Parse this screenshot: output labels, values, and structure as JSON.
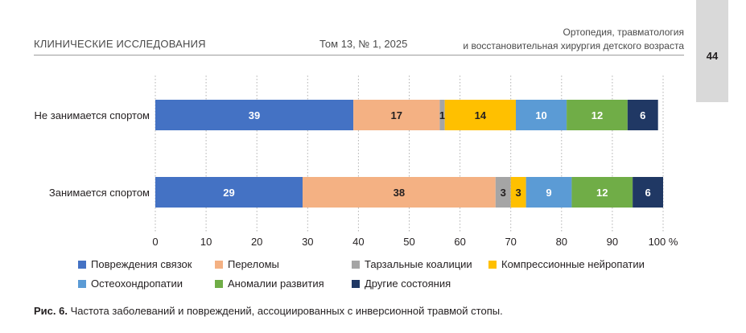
{
  "header": {
    "journal_section": "КЛИНИЧЕСКИЕ ИССЛЕДОВАНИЯ",
    "issue": "Том 13, № 1, 2025",
    "journal_title_line1": "Ортопедия, травматология",
    "journal_title_line2": "и восстановительная хирургия детского возраста",
    "page_number": "44"
  },
  "caption": {
    "label": "Рис. 6.",
    "text": " Частота заболеваний и повреждений, ассоциированных с инверсионной травмой стопы."
  },
  "chart_data": {
    "type": "bar",
    "orientation": "horizontal",
    "stacked": true,
    "categories": [
      "Не занимается спортом",
      "Занимается спортом"
    ],
    "series": [
      {
        "name": "Повреждения связок",
        "values": [
          39,
          29
        ],
        "color": "#4472c4"
      },
      {
        "name": "Переломы",
        "values": [
          17,
          38
        ],
        "color": "#f4b183"
      },
      {
        "name": "Тарзальные коалиции",
        "values": [
          1,
          3
        ],
        "color": "#a5a5a5"
      },
      {
        "name": "Компрессионные нейропатии",
        "values": [
          14,
          3
        ],
        "color": "#ffc000"
      },
      {
        "name": "Остеохондропатии",
        "values": [
          10,
          9
        ],
        "color": "#5b9bd5"
      },
      {
        "name": "Аномалии развития",
        "values": [
          12,
          12
        ],
        "color": "#70ad47"
      },
      {
        "name": "Другие состояния",
        "values": [
          6,
          6
        ],
        "color": "#203864"
      }
    ],
    "xlim": [
      0,
      100
    ],
    "xticks": [
      "0",
      "10",
      "20",
      "30",
      "40",
      "50",
      "60",
      "70",
      "80",
      "90",
      "100 %"
    ],
    "grid": "vertical-dotted",
    "legend_position": "bottom"
  }
}
